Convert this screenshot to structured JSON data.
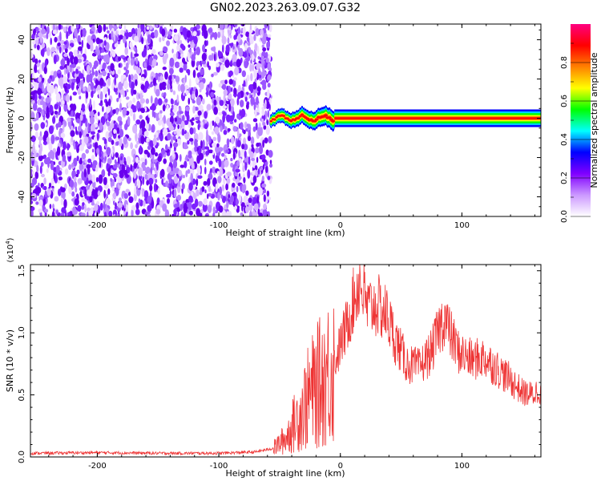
{
  "title": "GN02.2023.263.09.07.G32",
  "chart_data": [
    {
      "type": "heatmap",
      "xlabel": "Height of straight line (km)",
      "ylabel": "Frequency (Hz)",
      "xlim": [
        -255,
        165
      ],
      "ylim": [
        -50,
        48
      ],
      "xticks": [
        -200,
        -100,
        0,
        100
      ],
      "yticks": [
        -40,
        -20,
        0,
        20,
        40
      ],
      "colorbar": {
        "label": "Normalized spectral amplitude",
        "range": [
          0,
          1
        ],
        "ticks": [
          "0.0",
          "0.2",
          "0.4",
          "0.6",
          "0.8"
        ],
        "colors": [
          "#ffffff",
          "#cc99ff",
          "#8000ff",
          "#0000ff",
          "#00ffff",
          "#00ff00",
          "#ffff00",
          "#ff8000",
          "#ff0000",
          "#ff0080"
        ]
      },
      "regions": [
        {
          "x_range": [
            -255,
            -57
          ],
          "frequency": "broadband noise",
          "amplitude_range": [
            0.0,
            0.2
          ]
        },
        {
          "x_range": [
            -57,
            -5
          ],
          "frequency": "near 0 Hz, fluctuating about ±2 Hz",
          "amplitude_range": [
            0.2,
            0.8
          ]
        },
        {
          "x_range": [
            -5,
            165
          ],
          "frequency": 0,
          "amplitude": 1.0
        }
      ]
    },
    {
      "type": "line",
      "xlabel": "Height of straight line (km)",
      "ylabel": "SNR (10 * v/v)",
      "y_scale_label": "(x10",
      "y_scale_exponent": "4",
      "y_multiplier": 10000,
      "xlim": [
        -255,
        165
      ],
      "ylim": [
        0,
        1.55
      ],
      "xticks": [
        -200,
        -100,
        0,
        100
      ],
      "yticks": [
        "0.0",
        "0.5",
        "1.0",
        "1.5"
      ],
      "series_color": "#ee3333",
      "points": [
        [
          -255,
          0.03
        ],
        [
          -200,
          0.035
        ],
        [
          -150,
          0.03
        ],
        [
          -100,
          0.03
        ],
        [
          -70,
          0.04
        ],
        [
          -55,
          0.07
        ],
        [
          -45,
          0.15
        ],
        [
          -35,
          0.32
        ],
        [
          -25,
          0.5
        ],
        [
          -15,
          0.62
        ],
        [
          -5,
          0.75
        ],
        [
          5,
          1.05
        ],
        [
          12,
          1.3
        ],
        [
          16,
          1.42
        ],
        [
          22,
          1.2
        ],
        [
          30,
          1.22
        ],
        [
          38,
          1.15
        ],
        [
          45,
          0.95
        ],
        [
          55,
          0.75
        ],
        [
          65,
          0.72
        ],
        [
          75,
          0.85
        ],
        [
          82,
          1.05
        ],
        [
          86,
          1.12
        ],
        [
          90,
          1.0
        ],
        [
          97,
          0.85
        ],
        [
          108,
          0.78
        ],
        [
          118,
          0.8
        ],
        [
          128,
          0.72
        ],
        [
          140,
          0.62
        ],
        [
          150,
          0.52
        ],
        [
          158,
          0.5
        ],
        [
          165,
          0.55
        ]
      ]
    }
  ]
}
